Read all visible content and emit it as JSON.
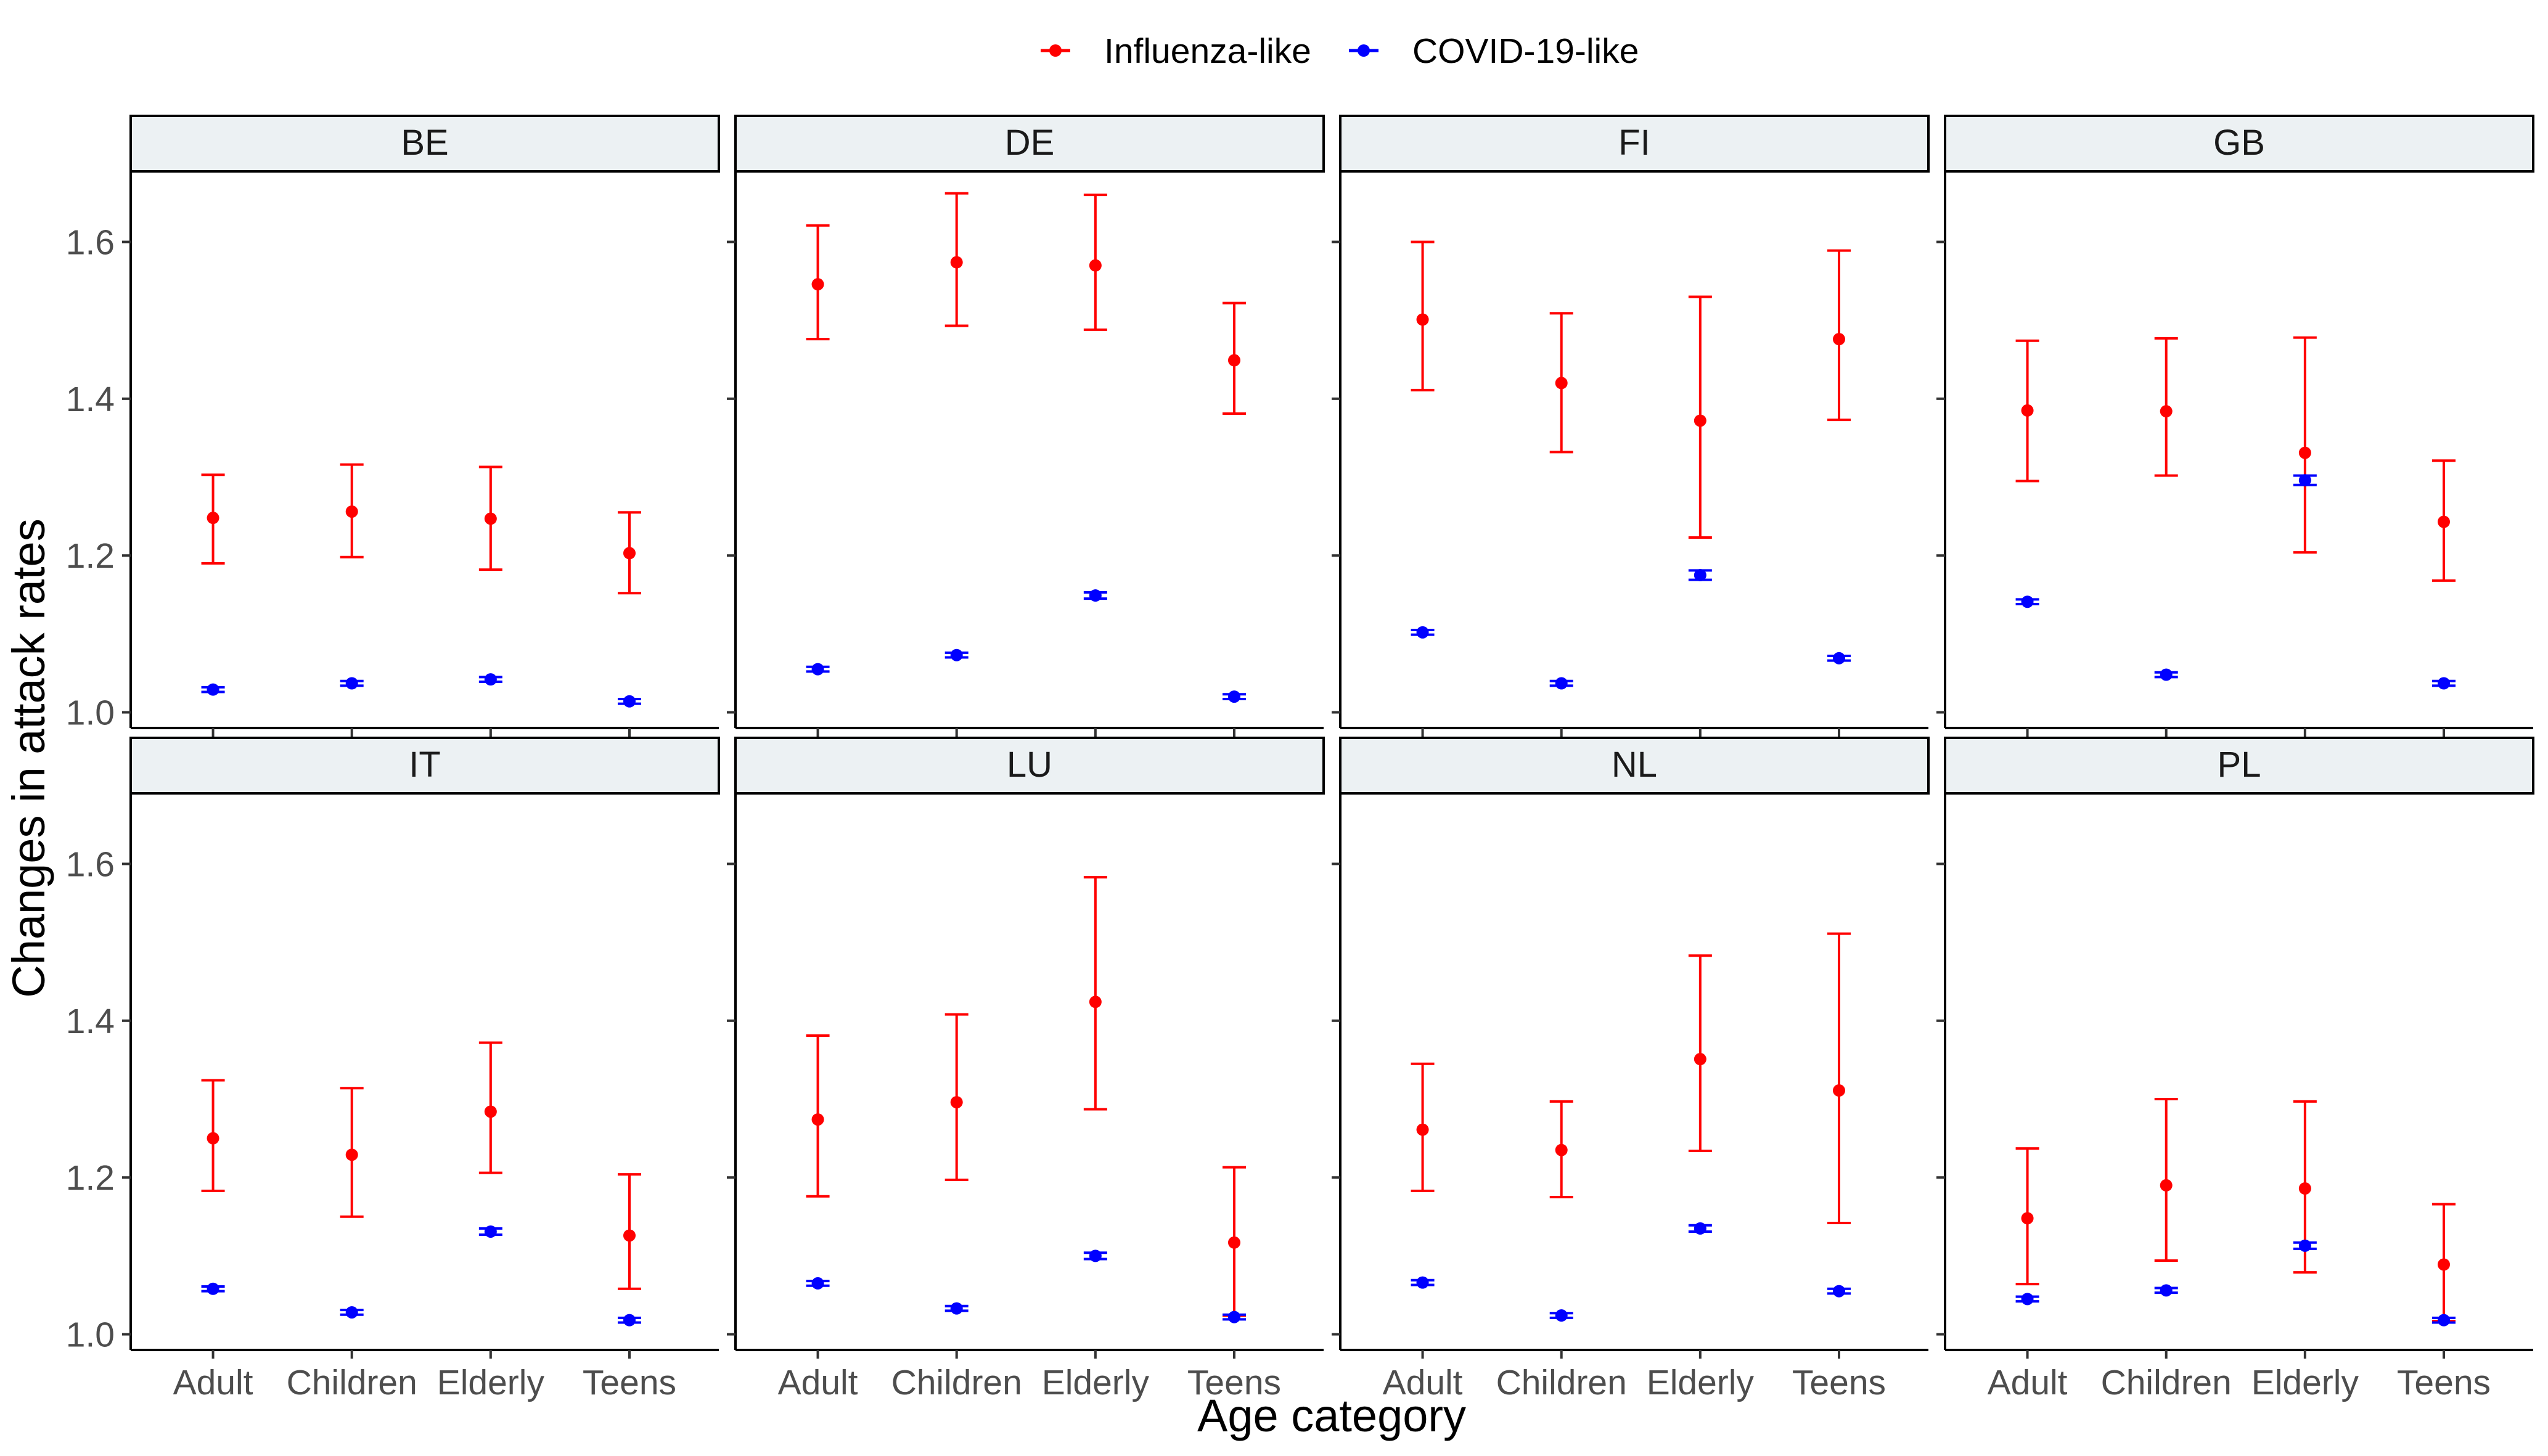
{
  "chart_data": {
    "type": "scatter",
    "subtype": "faceted point-range (mean with error bars)",
    "xlabel": "Age category",
    "ylabel": "Changes in attack rates",
    "categories": [
      "Adult",
      "Children",
      "Elderly",
      "Teens"
    ],
    "ylim": [
      0.98,
      1.69
    ],
    "yticks": [
      1.0,
      1.2,
      1.4,
      1.6
    ],
    "ytick_labels": [
      "1.0",
      "1.2",
      "1.4",
      "1.6"
    ],
    "grid": false,
    "legend": {
      "position": "top",
      "entries": [
        {
          "name": "Influenza-like",
          "color": "#ff0000"
        },
        {
          "name": "COVID-19-like",
          "color": "#0000ff"
        }
      ]
    },
    "panels": [
      {
        "label": "BE",
        "series": [
          {
            "name": "Influenza-like",
            "values": [
              1.248,
              1.256,
              1.247,
              1.203
            ],
            "lower": [
              1.19,
              1.198,
              1.182,
              1.152
            ],
            "upper": [
              1.303,
              1.316,
              1.313,
              1.255
            ]
          },
          {
            "name": "COVID-19-like",
            "values": [
              1.029,
              1.037,
              1.042,
              1.014
            ],
            "lower": [
              1.026,
              1.034,
              1.039,
              1.011
            ],
            "upper": [
              1.032,
              1.04,
              1.045,
              1.017
            ]
          }
        ]
      },
      {
        "label": "DE",
        "series": [
          {
            "name": "Influenza-like",
            "values": [
              1.546,
              1.574,
              1.57,
              1.449
            ],
            "lower": [
              1.476,
              1.493,
              1.488,
              1.381
            ],
            "upper": [
              1.621,
              1.662,
              1.66,
              1.522
            ]
          },
          {
            "name": "COVID-19-like",
            "values": [
              1.055,
              1.073,
              1.149,
              1.02
            ],
            "lower": [
              1.052,
              1.07,
              1.145,
              1.017
            ],
            "upper": [
              1.058,
              1.076,
              1.153,
              1.023
            ]
          }
        ]
      },
      {
        "label": "FI",
        "series": [
          {
            "name": "Influenza-like",
            "values": [
              1.501,
              1.42,
              1.372,
              1.476
            ],
            "lower": [
              1.411,
              1.332,
              1.223,
              1.373
            ],
            "upper": [
              1.6,
              1.509,
              1.53,
              1.589
            ]
          },
          {
            "name": "COVID-19-like",
            "values": [
              1.102,
              1.037,
              1.175,
              1.069
            ],
            "lower": [
              1.099,
              1.034,
              1.169,
              1.066
            ],
            "upper": [
              1.105,
              1.04,
              1.181,
              1.072
            ]
          }
        ]
      },
      {
        "label": "GB",
        "series": [
          {
            "name": "Influenza-like",
            "values": [
              1.385,
              1.384,
              1.331,
              1.243
            ],
            "lower": [
              1.295,
              1.302,
              1.204,
              1.168
            ],
            "upper": [
              1.474,
              1.477,
              1.478,
              1.321
            ]
          },
          {
            "name": "COVID-19-like",
            "values": [
              1.141,
              1.048,
              1.296,
              1.037
            ],
            "lower": [
              1.138,
              1.045,
              1.29,
              1.034
            ],
            "upper": [
              1.144,
              1.051,
              1.302,
              1.04
            ]
          }
        ]
      },
      {
        "label": "IT",
        "series": [
          {
            "name": "Influenza-like",
            "values": [
              1.25,
              1.229,
              1.284,
              1.126
            ],
            "lower": [
              1.183,
              1.15,
              1.206,
              1.058
            ],
            "upper": [
              1.324,
              1.314,
              1.372,
              1.204
            ]
          },
          {
            "name": "COVID-19-like",
            "values": [
              1.058,
              1.028,
              1.131,
              1.018
            ],
            "lower": [
              1.055,
              1.025,
              1.127,
              1.015
            ],
            "upper": [
              1.061,
              1.031,
              1.135,
              1.021
            ]
          }
        ]
      },
      {
        "label": "LU",
        "series": [
          {
            "name": "Influenza-like",
            "values": [
              1.274,
              1.296,
              1.424,
              1.117
            ],
            "lower": [
              1.176,
              1.197,
              1.287,
              1.024
            ],
            "upper": [
              1.381,
              1.408,
              1.583,
              1.213
            ]
          },
          {
            "name": "COVID-19-like",
            "values": [
              1.065,
              1.033,
              1.1,
              1.022
            ],
            "lower": [
              1.062,
              1.03,
              1.096,
              1.019
            ],
            "upper": [
              1.068,
              1.036,
              1.104,
              1.025
            ]
          }
        ]
      },
      {
        "label": "NL",
        "series": [
          {
            "name": "Influenza-like",
            "values": [
              1.261,
              1.235,
              1.351,
              1.311
            ],
            "lower": [
              1.183,
              1.175,
              1.234,
              1.142
            ],
            "upper": [
              1.345,
              1.297,
              1.483,
              1.511
            ]
          },
          {
            "name": "COVID-19-like",
            "values": [
              1.066,
              1.024,
              1.135,
              1.055
            ],
            "lower": [
              1.063,
              1.021,
              1.131,
              1.052
            ],
            "upper": [
              1.069,
              1.027,
              1.139,
              1.058
            ]
          }
        ]
      },
      {
        "label": "PL",
        "series": [
          {
            "name": "Influenza-like",
            "values": [
              1.148,
              1.19,
              1.186,
              1.089
            ],
            "lower": [
              1.064,
              1.094,
              1.079,
              1.017
            ],
            "upper": [
              1.237,
              1.3,
              1.297,
              1.166
            ]
          },
          {
            "name": "COVID-19-like",
            "values": [
              1.045,
              1.056,
              1.113,
              1.018
            ],
            "lower": [
              1.042,
              1.053,
              1.109,
              1.015
            ],
            "upper": [
              1.048,
              1.059,
              1.117,
              1.021
            ]
          }
        ]
      }
    ]
  }
}
